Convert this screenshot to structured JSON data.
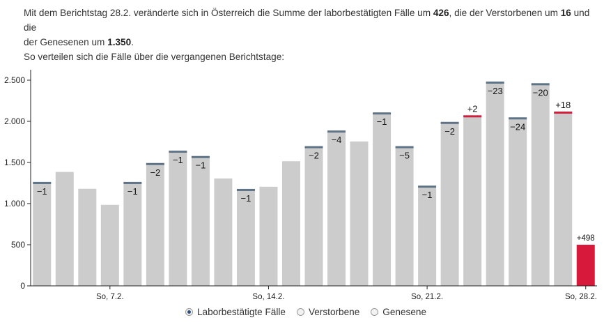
{
  "intro": {
    "l1a": "Mit dem Berichtstag 28.2. veränderte sich in Österreich die Summe der laborbestätigten Fälle um ",
    "l1b": "426",
    "l1c": ", die der Verstorbenen um ",
    "l1d": "16",
    "l1e": " und die",
    "l2a": "der Genesenen um ",
    "l2b": "1.350",
    "l2c": ".",
    "l3": "So verteilen sich die Fälle über die vergangenen Berichtstage:"
  },
  "legend": {
    "items": [
      {
        "label": "Laborbestätigte Fälle",
        "selected": true
      },
      {
        "label": "Verstorbene",
        "selected": false
      },
      {
        "label": "Genesene",
        "selected": false
      }
    ]
  },
  "colors": {
    "bar": "#cccccc",
    "cap_neg": "#5f7387",
    "cap_pos": "#cf1f3c",
    "highlight": "#d7193b",
    "axis": "#222222",
    "grid": "#d9d9d9"
  },
  "chart_data": {
    "type": "bar",
    "ylim": [
      0,
      2500
    ],
    "yticks": [
      0,
      500,
      1000,
      1500,
      2000,
      2500
    ],
    "ytick_labels": [
      "0",
      "500",
      "1.000",
      "1.500",
      "2.000",
      "2.500"
    ],
    "xtick_labels": [
      {
        "index": 3,
        "label": "So, 7.2."
      },
      {
        "index": 10,
        "label": "So, 14.2."
      },
      {
        "index": 17,
        "label": "So, 21.2."
      },
      {
        "index": 24,
        "label": "So, 28.2."
      }
    ],
    "values": [
      1255,
      1385,
      1180,
      985,
      1255,
      1485,
      1635,
      1570,
      1305,
      1170,
      1205,
      1515,
      1690,
      1880,
      1755,
      2100,
      1690,
      1210,
      1985,
      2065,
      2475,
      2040,
      2455,
      2110,
      500
    ],
    "changes": [
      -1,
      0,
      0,
      0,
      -1,
      -2,
      -1,
      -1,
      0,
      -1,
      0,
      0,
      -2,
      -4,
      0,
      -1,
      -5,
      -1,
      -2,
      2,
      -23,
      -24,
      -20,
      18,
      498
    ],
    "change_labels": [
      "−1",
      "",
      "",
      "",
      "−1",
      "−2",
      "−1",
      "−1",
      "",
      "−1",
      "",
      "",
      "−2",
      "−4",
      "",
      "−1",
      "−5",
      "−1",
      "−2",
      "+2",
      "−23",
      "−24",
      "−20",
      "+18",
      "+498"
    ],
    "highlight_index": 24,
    "grid": true
  }
}
